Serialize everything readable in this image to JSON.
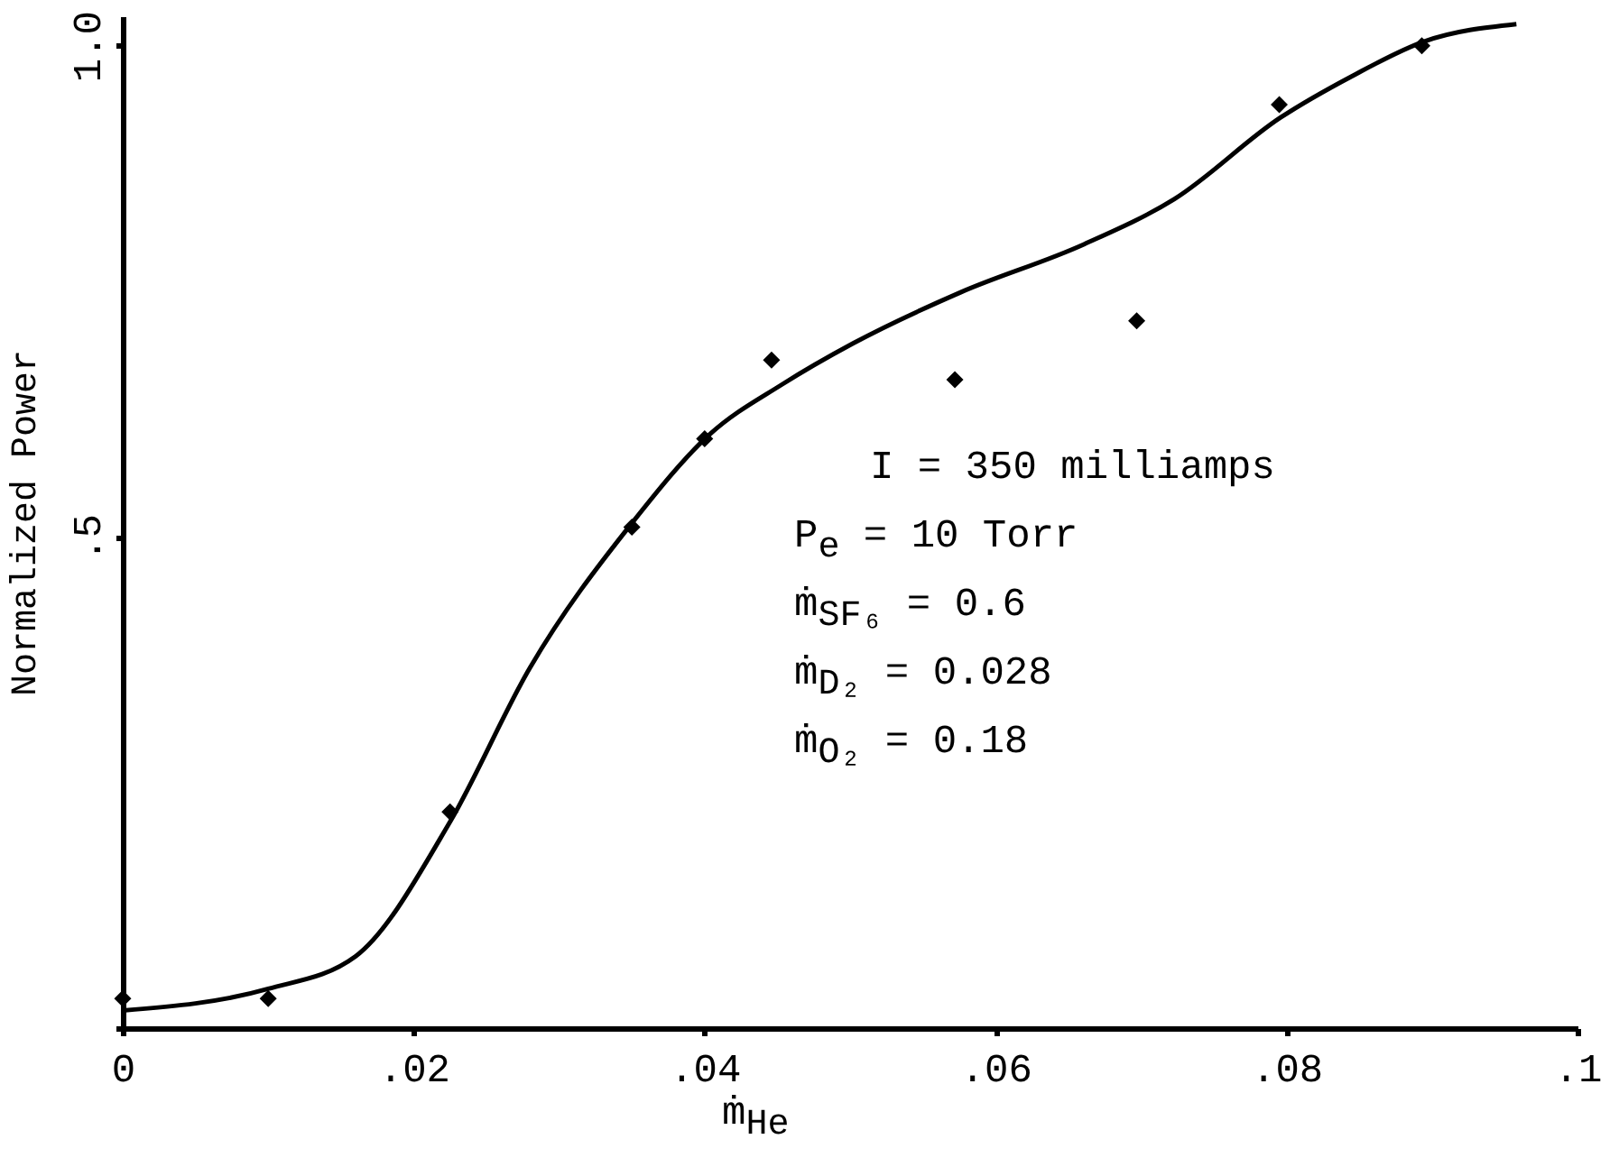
{
  "chart_data": {
    "type": "scatter",
    "xlabel": "ṁ$_{He}$",
    "ylabel": "Normalized Power",
    "annotations": [
      "I = 350 milliamps",
      "P$_{e}$ = 10 Torr",
      "ṁ$_{SF₆}$ = 0.6",
      "ṁ$_{D₂}$ = 0.028",
      "ṁ$_{O₂}$ = 0.18"
    ],
    "x": [
      0,
      0.01,
      0.0225,
      0.035,
      0.04,
      0.0446,
      0.0572,
      0.0697,
      0.0795,
      0.0893
    ],
    "series": [
      {
        "color": "#000000",
        "marker": "diamond",
        "values": [
          0.03,
          0.03,
          0.22,
          0.51,
          0.6,
          0.68,
          0.66,
          0.72,
          0.94,
          1.0
        ]
      },
      {
        "type": "line",
        "color": "#000000",
        "line_style": "solid",
        "x": [
          0,
          0.01,
          0.016,
          0.0225,
          0.028,
          0.035,
          0.0404,
          0.0453,
          0.0502,
          0.0576,
          0.0661,
          0.0723,
          0.0796,
          0.0845,
          0.0894,
          0.0958
        ],
        "values": [
          0.018,
          0.04,
          0.073,
          0.21,
          0.367,
          0.514,
          0.605,
          0.655,
          0.697,
          0.749,
          0.798,
          0.844,
          0.927,
          0.969,
          1.004,
          1.022
        ]
      }
    ],
    "xlim": [
      0,
      0.1
    ],
    "ylim": [
      0,
      1.03
    ],
    "xticks": [
      0,
      {
        "value": 0.02,
        "label": ".02"
      },
      {
        "value": 0.04,
        "label": ".04"
      },
      {
        "value": 0.06,
        "label": ".06"
      },
      {
        "value": 0.08,
        "label": ".08"
      },
      {
        "value": 0.1,
        "label": ".1"
      }
    ],
    "yticks": [
      {
        "value": 0,
        "label": null
      },
      {
        "value": 0.5,
        "label": ".5"
      },
      {
        "value": 1,
        "label": "1.0"
      }
    ],
    "grid": false
  }
}
